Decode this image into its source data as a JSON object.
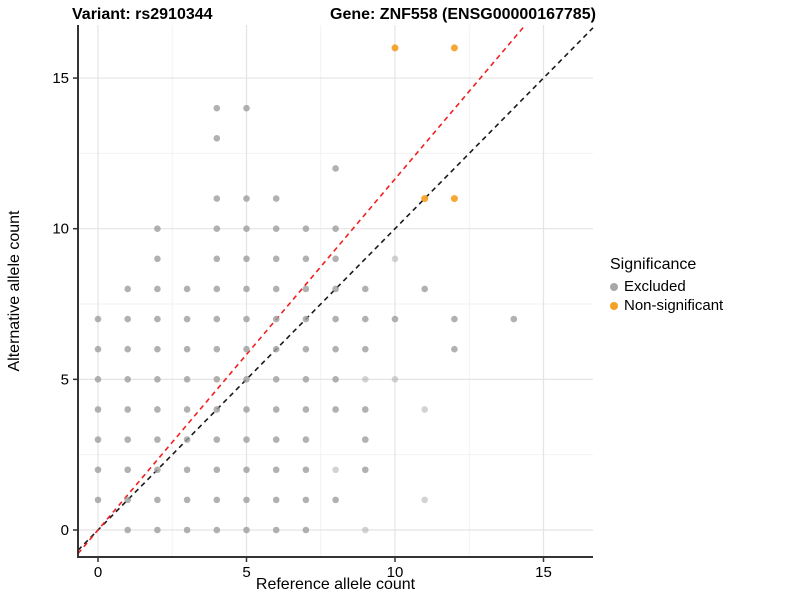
{
  "titles": {
    "variant": "Variant: rs2910344",
    "gene": "Gene: ZNF558 (ENSG00000167785)"
  },
  "axes": {
    "x_label": "Reference allele count",
    "y_label": "Alternative allele count"
  },
  "legend": {
    "title": "Significance",
    "items": [
      {
        "label": "Excluded",
        "color": "#a8a8a8"
      },
      {
        "label": "Non-significant",
        "color": "#f5a126"
      }
    ]
  },
  "colors": {
    "excluded_point": "#9e9e9e",
    "nonsignificant_point": "#f5a126",
    "identity_line": "#1a1a1a",
    "trend_line": "#f02020",
    "grid_major": "#e4e4e4",
    "grid_minor": "#f2f2f2",
    "axis_line": "#333333",
    "text": "#000000"
  },
  "chart_data": {
    "type": "scatter",
    "title": "Variant: rs2910344 | Gene: ZNF558 (ENSG00000167785)",
    "xlabel": "Reference allele count",
    "ylabel": "Alternative allele count",
    "xlim": [
      -0.7,
      16.7
    ],
    "ylim": [
      -0.9,
      16.8
    ],
    "x_ticks": [
      0,
      5,
      10,
      15
    ],
    "y_ticks": [
      0,
      5,
      10,
      15
    ],
    "x_tick_labels": [
      "0",
      "5",
      "10",
      "15"
    ],
    "y_tick_labels": [
      "0",
      "5",
      "10",
      "15"
    ],
    "x_minor_ticks": [
      2.5,
      7.5,
      12.5
    ],
    "y_minor_ticks": [
      2.5,
      7.5,
      12.5
    ],
    "grid": true,
    "legend_position": "right",
    "series": [
      {
        "name": "Excluded",
        "color": "#9e9e9e",
        "points": [
          [
            1,
            0
          ],
          [
            2,
            0
          ],
          [
            3,
            0
          ],
          [
            4,
            0
          ],
          [
            5,
            0
          ],
          [
            6,
            0
          ],
          [
            7,
            0
          ],
          [
            9,
            0
          ],
          [
            0,
            1
          ],
          [
            1,
            1
          ],
          [
            2,
            1
          ],
          [
            3,
            1
          ],
          [
            4,
            1
          ],
          [
            5,
            1
          ],
          [
            6,
            1
          ],
          [
            7,
            1
          ],
          [
            8,
            1
          ],
          [
            11,
            1
          ],
          [
            0,
            2
          ],
          [
            1,
            2
          ],
          [
            2,
            2
          ],
          [
            3,
            2
          ],
          [
            4,
            2
          ],
          [
            5,
            2
          ],
          [
            6,
            2
          ],
          [
            7,
            2
          ],
          [
            8,
            2
          ],
          [
            9,
            2
          ],
          [
            0,
            3
          ],
          [
            1,
            3
          ],
          [
            2,
            3
          ],
          [
            3,
            3
          ],
          [
            4,
            3
          ],
          [
            5,
            3
          ],
          [
            6,
            3
          ],
          [
            7,
            3
          ],
          [
            9,
            3
          ],
          [
            0,
            4
          ],
          [
            1,
            4
          ],
          [
            2,
            4
          ],
          [
            3,
            4
          ],
          [
            4,
            4
          ],
          [
            5,
            4
          ],
          [
            6,
            4
          ],
          [
            7,
            4
          ],
          [
            8,
            4
          ],
          [
            9,
            4
          ],
          [
            11,
            4
          ],
          [
            0,
            5
          ],
          [
            1,
            5
          ],
          [
            2,
            5
          ],
          [
            3,
            5
          ],
          [
            4,
            5
          ],
          [
            5,
            5
          ],
          [
            6,
            5
          ],
          [
            7,
            5
          ],
          [
            8,
            5
          ],
          [
            9,
            5
          ],
          [
            10,
            5
          ],
          [
            0,
            6
          ],
          [
            1,
            6
          ],
          [
            2,
            6
          ],
          [
            3,
            6
          ],
          [
            4,
            6
          ],
          [
            5,
            6
          ],
          [
            6,
            6
          ],
          [
            7,
            6
          ],
          [
            8,
            6
          ],
          [
            9,
            6
          ],
          [
            12,
            6
          ],
          [
            0,
            7
          ],
          [
            1,
            7
          ],
          [
            2,
            7
          ],
          [
            3,
            7
          ],
          [
            4,
            7
          ],
          [
            5,
            7
          ],
          [
            6,
            7
          ],
          [
            7,
            7
          ],
          [
            8,
            7
          ],
          [
            9,
            7
          ],
          [
            10,
            7
          ],
          [
            12,
            7
          ],
          [
            14,
            7
          ],
          [
            1,
            8
          ],
          [
            2,
            8
          ],
          [
            3,
            8
          ],
          [
            4,
            8
          ],
          [
            5,
            8
          ],
          [
            6,
            8
          ],
          [
            7,
            8
          ],
          [
            8,
            8
          ],
          [
            9,
            8
          ],
          [
            11,
            8
          ],
          [
            2,
            9
          ],
          [
            4,
            9
          ],
          [
            5,
            9
          ],
          [
            6,
            9
          ],
          [
            7,
            9
          ],
          [
            8,
            9
          ],
          [
            10,
            9
          ],
          [
            2,
            10
          ],
          [
            4,
            10
          ],
          [
            5,
            10
          ],
          [
            6,
            10
          ],
          [
            7,
            10
          ],
          [
            8,
            10
          ],
          [
            4,
            11
          ],
          [
            5,
            11
          ],
          [
            6,
            11
          ],
          [
            8,
            12
          ],
          [
            4,
            13
          ],
          [
            4,
            14
          ],
          [
            5,
            14
          ]
        ],
        "light_points": [
          [
            9,
            0
          ],
          [
            11,
            1
          ],
          [
            8,
            2
          ],
          [
            11,
            4
          ],
          [
            9,
            5
          ],
          [
            10,
            5
          ],
          [
            10,
            9
          ]
        ]
      },
      {
        "name": "Non-significant",
        "color": "#f5a126",
        "points": [
          [
            11,
            11
          ],
          [
            12,
            11
          ],
          [
            10,
            16
          ],
          [
            12,
            16
          ]
        ]
      }
    ],
    "lines": [
      {
        "name": "identity",
        "slope": 1.0,
        "intercept": 0,
        "color": "#1a1a1a",
        "style": "dashed"
      },
      {
        "name": "trend",
        "slope": 1.165,
        "intercept": 0,
        "color": "#f02020",
        "style": "dashed"
      }
    ]
  }
}
